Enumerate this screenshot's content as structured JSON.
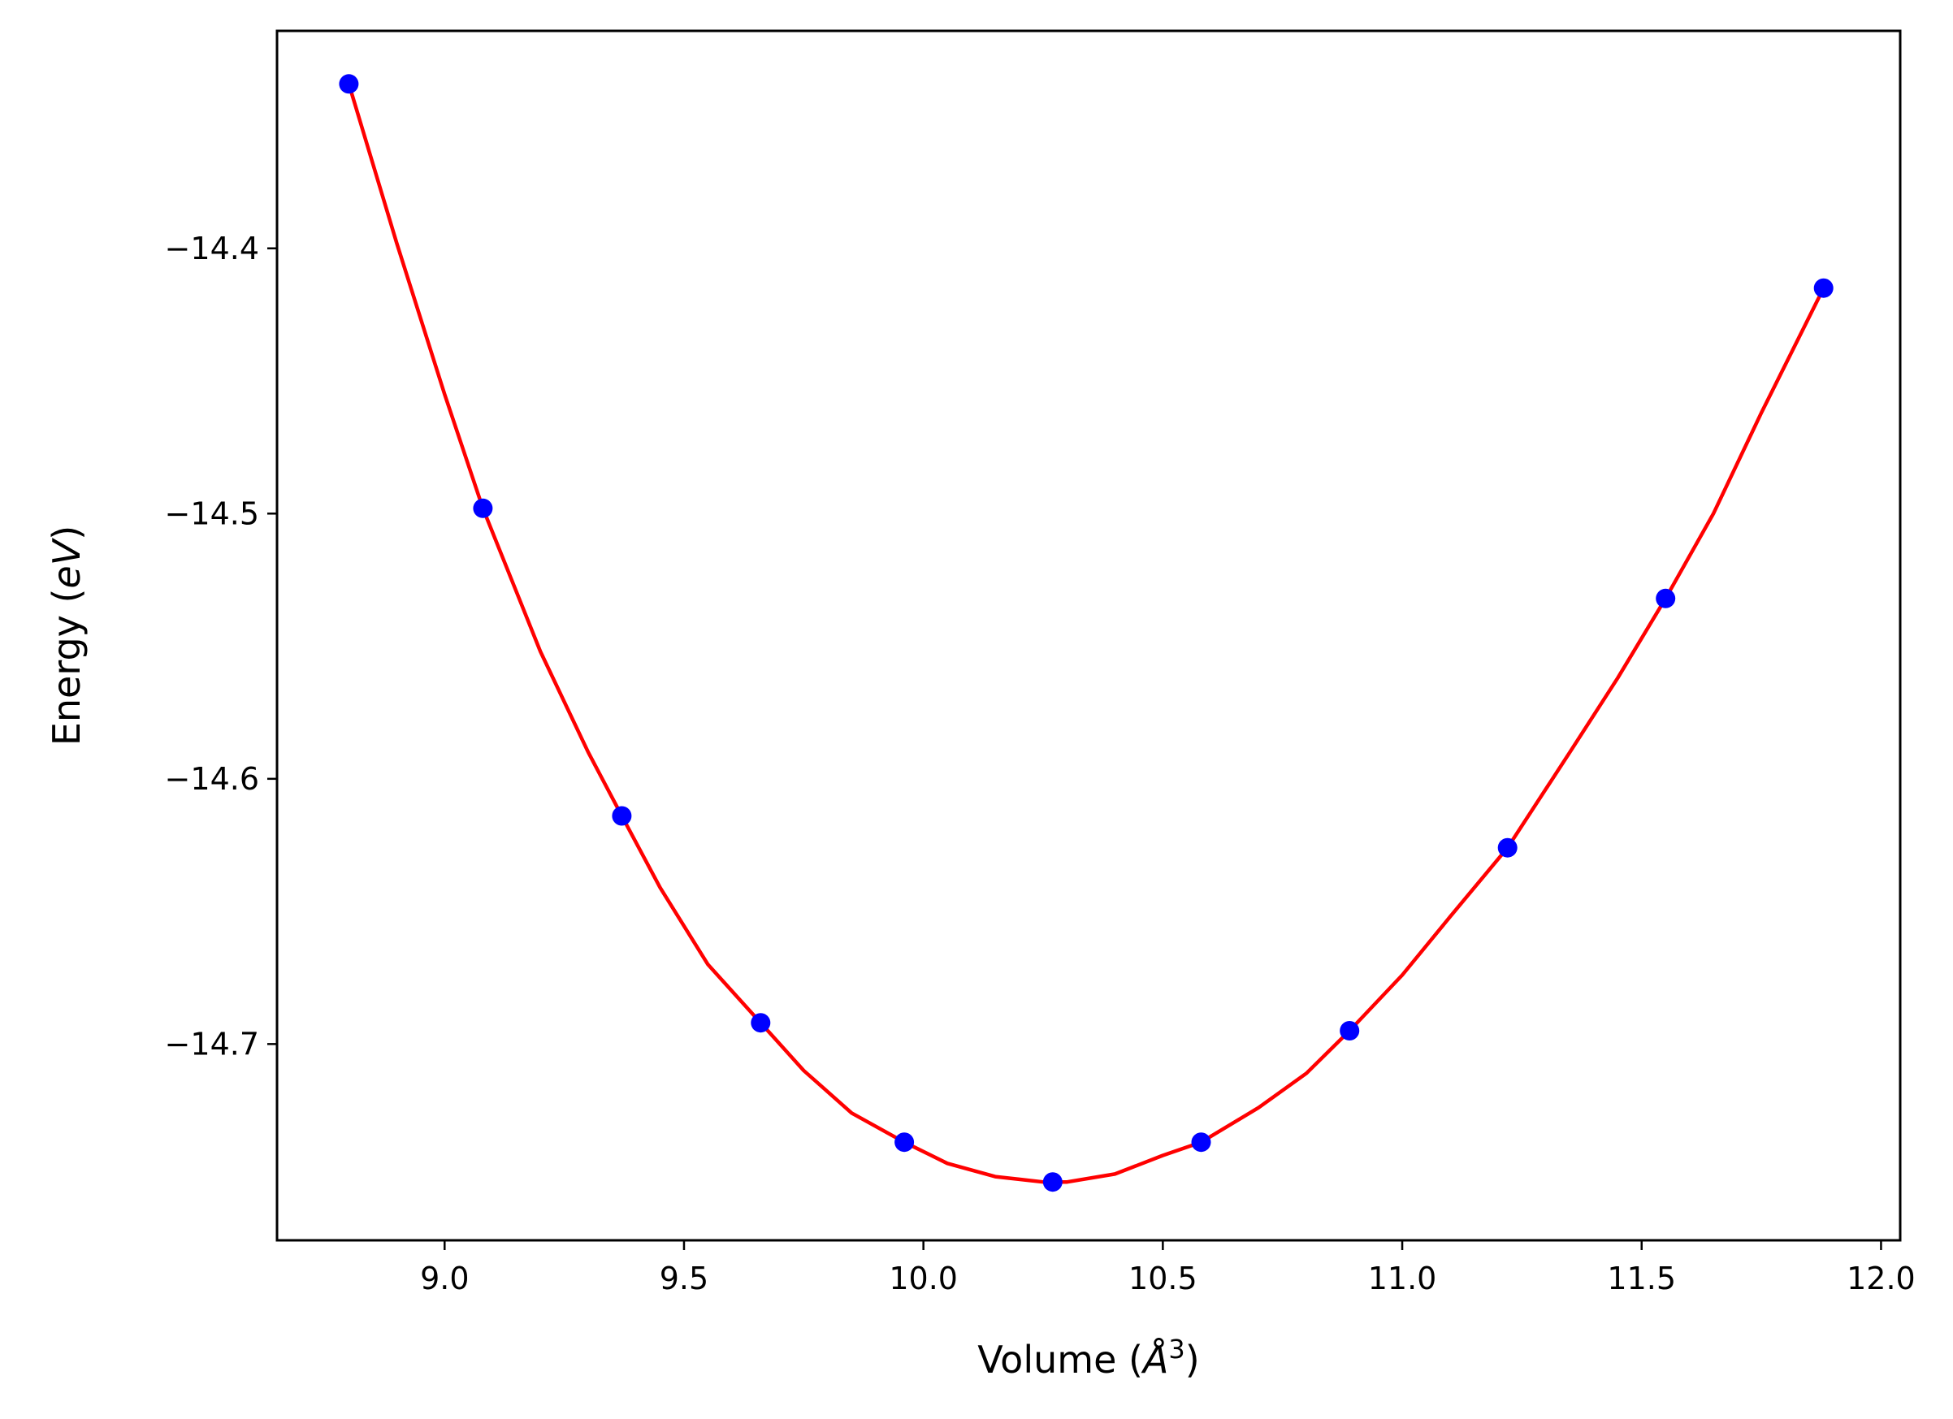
{
  "chart_data": {
    "type": "scatter",
    "xlabel_prefix": "Volume (",
    "xlabel_symbol": "Å",
    "xlabel_exp": "3",
    "xlabel_suffix": ")",
    "ylabel_prefix": "Energy (",
    "ylabel_unit": "eV",
    "ylabel_suffix": ")",
    "xlim": [
      8.65,
      12.04
    ],
    "ylim": [
      -14.774,
      -14.318
    ],
    "xticks": [
      9.0,
      9.5,
      10.0,
      10.5,
      11.0,
      11.5,
      12.0
    ],
    "xtick_labels": [
      "9.0",
      "9.5",
      "10.0",
      "10.5",
      "11.0",
      "11.5",
      "12.0"
    ],
    "yticks": [
      -14.4,
      -14.5,
      -14.6,
      -14.7
    ],
    "ytick_labels": [
      "−14.4",
      "−14.5",
      "−14.6",
      "−14.7"
    ],
    "grid": false,
    "series": [
      {
        "type": "scatter",
        "color": "#0000ff",
        "x": [
          8.8,
          9.08,
          9.37,
          9.66,
          9.96,
          10.27,
          10.58,
          10.89,
          11.22,
          11.55,
          11.88
        ],
        "y": [
          -14.338,
          -14.498,
          -14.614,
          -14.692,
          -14.737,
          -14.752,
          -14.737,
          -14.695,
          -14.626,
          -14.532,
          -14.415
        ]
      },
      {
        "type": "line",
        "color": "#ff0000",
        "x": [
          8.8,
          8.9,
          9.0,
          9.08,
          9.2,
          9.3,
          9.37,
          9.45,
          9.55,
          9.66,
          9.75,
          9.85,
          9.96,
          10.05,
          10.15,
          10.2,
          10.25,
          10.27,
          10.3,
          10.4,
          10.5,
          10.58,
          10.7,
          10.8,
          10.89,
          11.0,
          11.1,
          11.22,
          11.35,
          11.45,
          11.55,
          11.65,
          11.75,
          11.88
        ],
        "y": [
          -14.338,
          -14.398,
          -14.455,
          -14.498,
          -14.552,
          -14.59,
          -14.614,
          -14.641,
          -14.67,
          -14.692,
          -14.71,
          -14.726,
          -14.737,
          -14.745,
          -14.75,
          -14.751,
          -14.752,
          -14.752,
          -14.752,
          -14.749,
          -14.742,
          -14.737,
          -14.724,
          -14.711,
          -14.695,
          -14.674,
          -14.652,
          -14.626,
          -14.59,
          -14.562,
          -14.532,
          -14.5,
          -14.462,
          -14.415
        ]
      }
    ]
  }
}
